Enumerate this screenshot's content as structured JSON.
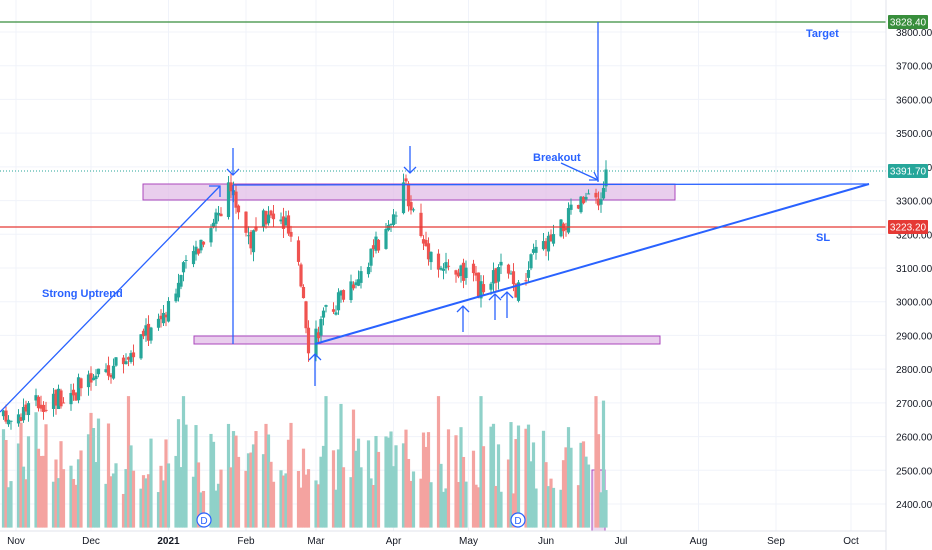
{
  "chart_data": {
    "type": "candlestick",
    "y_axis": {
      "ylim": [
        2330,
        3850
      ],
      "ticks": [
        "3800.00",
        "3700.00",
        "3600.00",
        "3500.00",
        "3400.00",
        "3300.00",
        "3200.00",
        "3100.00",
        "3000.00",
        "2900.00",
        "2800.00",
        "2700.00",
        "2600.00",
        "2500.00",
        "2400.00"
      ],
      "tick_values": [
        3800,
        3700,
        3600,
        3500,
        3400,
        3300,
        3200,
        3100,
        3000,
        2900,
        2800,
        2700,
        2600,
        2500,
        2400
      ]
    },
    "x_axis": {
      "ticks": [
        {
          "label": "Nov",
          "date": "2020-11-01"
        },
        {
          "label": "Dec",
          "date": "2020-12-01"
        },
        {
          "label": "2021",
          "date": "2021-01-01"
        },
        {
          "label": "Feb",
          "date": "2021-02-01"
        },
        {
          "label": "Mar",
          "date": "2021-03-01"
        },
        {
          "label": "Apr",
          "date": "2021-04-01"
        },
        {
          "label": "May",
          "date": "2021-05-01"
        },
        {
          "label": "Jun",
          "date": "2021-06-01"
        },
        {
          "label": "Jul",
          "date": "2021-07-01"
        },
        {
          "label": "Aug",
          "date": "2021-08-01"
        },
        {
          "label": "Sep",
          "date": "2021-09-01"
        },
        {
          "label": "Oct",
          "date": "2021-10-01"
        }
      ]
    },
    "price_levels": {
      "target": 3828.4,
      "target_label": "3828.40",
      "current": 3391.7,
      "current_label": "3391.70",
      "stop_loss": 3223.2,
      "stop_loss_label": "3223.20"
    },
    "colors": {
      "up": "#26a69a",
      "down": "#ef5350",
      "vol_up": "#8fd1c9",
      "vol_down": "#f4a3a0",
      "line_blue": "#2962ff",
      "target_green": "#388e3c",
      "sl_red": "#e53935",
      "zone_fill": "#e1bee7",
      "zone_stroke": "#ab47bc"
    },
    "anchor_points": [
      {
        "date": "2020-10-27",
        "close": 2650
      },
      {
        "date": "2020-11-10",
        "close": 2700
      },
      {
        "date": "2020-11-27",
        "close": 2745
      },
      {
        "date": "2020-12-15",
        "close": 2830
      },
      {
        "date": "2020-12-29",
        "close": 2960
      },
      {
        "date": "2021-01-12",
        "close": 3160
      },
      {
        "date": "2021-01-26",
        "close": 3335
      },
      {
        "date": "2021-02-03",
        "close": 3180
      },
      {
        "date": "2021-02-09",
        "close": 3250
      },
      {
        "date": "2021-02-17",
        "close": 3230
      },
      {
        "date": "2021-02-24",
        "close": 3030
      },
      {
        "date": "2021-02-26",
        "close": 2880
      },
      {
        "date": "2021-03-05",
        "close": 2960
      },
      {
        "date": "2021-03-17",
        "close": 3080
      },
      {
        "date": "2021-03-31",
        "close": 3220
      },
      {
        "date": "2021-04-06",
        "close": 3340
      },
      {
        "date": "2021-04-12",
        "close": 3190
      },
      {
        "date": "2021-04-21",
        "close": 3100
      },
      {
        "date": "2021-04-30",
        "close": 3080
      },
      {
        "date": "2021-05-07",
        "close": 3020
      },
      {
        "date": "2021-05-14",
        "close": 3100
      },
      {
        "date": "2021-05-21",
        "close": 3030
      },
      {
        "date": "2021-05-28",
        "close": 3150
      },
      {
        "date": "2021-06-04",
        "close": 3180
      },
      {
        "date": "2021-06-11",
        "close": 3260
      },
      {
        "date": "2021-06-18",
        "close": 3310
      },
      {
        "date": "2021-06-22",
        "close": 3270
      },
      {
        "date": "2021-06-25",
        "close": 3392
      }
    ],
    "volume_range": [
      2330,
      2720
    ],
    "annotations": [
      "Target",
      "SL",
      "Breakout",
      "Strong Uptrend"
    ]
  },
  "annotations": {
    "target": "Target",
    "sl": "SL",
    "breakout": "Breakout",
    "strong_uptrend": "Strong Uptrend"
  },
  "markers": {
    "dividend": "D"
  }
}
